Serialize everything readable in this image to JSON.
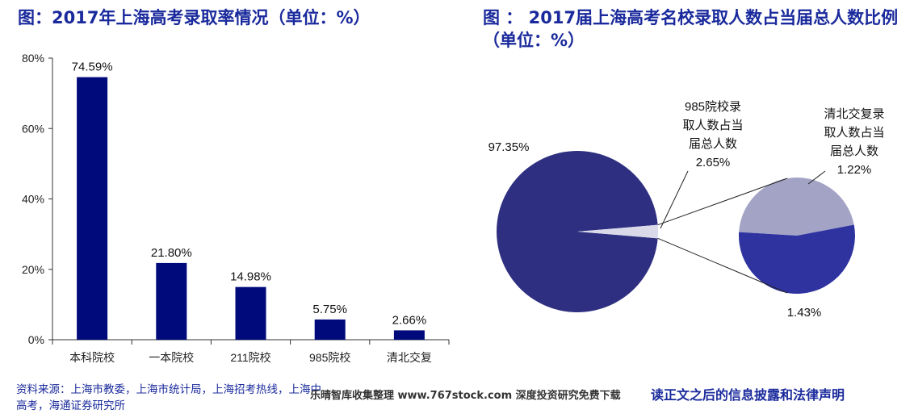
{
  "chart_data": [
    {
      "type": "bar",
      "title": "图：2017年上海高考录取率情况（单位：%）",
      "categories": [
        "本科院校",
        "一本院校",
        "211院校",
        "985院校",
        "清北交复"
      ],
      "values": [
        74.59,
        21.8,
        14.98,
        5.75,
        2.66
      ],
      "value_labels": [
        "74.59%",
        "21.80%",
        "14.98%",
        "5.75%",
        "2.66%"
      ],
      "ylim": [
        0,
        80
      ],
      "yticks": [
        "0%",
        "20%",
        "40%",
        "60%",
        "80%"
      ],
      "ytick_values": [
        0,
        20,
        40,
        60,
        80
      ],
      "grid": false,
      "bar_color": "#000a7a"
    },
    {
      "type": "pie",
      "title": "图 ： 2017届上海高考名校录取人数占当届总人数比例（单位：%）",
      "slices": [
        {
          "label": "97.35%",
          "value": 97.35,
          "color": "#2e2f80"
        },
        {
          "label": "985院校录取人数占当届总人数 2.65%",
          "value": 2.65,
          "color": "#d9d9ea"
        }
      ],
      "sub_pie": {
        "slices": [
          {
            "label": "清北交复录取人数占当届总人数 1.22%",
            "value": 1.22,
            "color": "#a3a3c6"
          },
          {
            "label": "1.43%",
            "value": 1.43,
            "color": "#2f33a0"
          }
        ]
      },
      "annotations": {
        "main_pct": "97.35%",
        "c985": [
          "985院校录",
          "取人数占当",
          "届总人数",
          "2.65%"
        ],
        "qbjf": [
          "清北交复录",
          "取人数占当",
          "届总人数",
          "1.22%"
        ],
        "other_pct": "1.43%"
      }
    }
  ],
  "footer": {
    "source": "资料来源：上海市教委，上海市统计局，上海招考热线，上海中高考，海通证券研究所",
    "watermark": "乐晴智库收集整理 www.767stock.com 深度投资研究免费下载",
    "disclaimer": "读正文之后的信息披露和法律声明"
  }
}
